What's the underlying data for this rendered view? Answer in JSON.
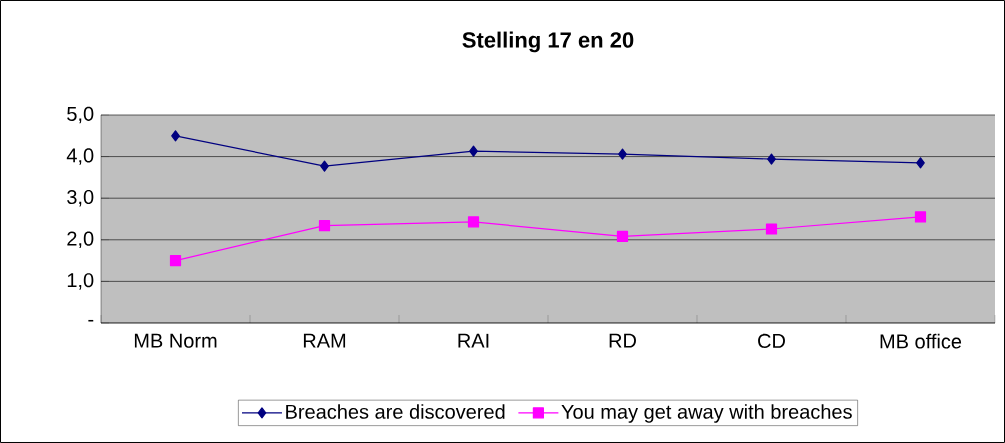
{
  "chart_data": {
    "type": "line",
    "title": "Stelling 17 en 20",
    "categories": [
      "MB Norm",
      "RAM",
      "RAI",
      "RD",
      "CD",
      "MB office"
    ],
    "series": [
      {
        "name": "Breaches are discovered",
        "color": "#000080",
        "marker": "diamond",
        "values": [
          4.5,
          3.77,
          4.13,
          4.06,
          3.94,
          3.85
        ]
      },
      {
        "name": "You may get away with breaches",
        "color": "#ff00ff",
        "marker": "square",
        "values": [
          1.5,
          2.34,
          2.43,
          2.08,
          2.26,
          2.55
        ]
      }
    ],
    "ylim": [
      0,
      5
    ],
    "yticks": [
      {
        "value": 0,
        "label": "-"
      },
      {
        "value": 1,
        "label": "1,0"
      },
      {
        "value": 2,
        "label": "2,0"
      },
      {
        "value": 3,
        "label": "3,0"
      },
      {
        "value": 4,
        "label": "4,0"
      },
      {
        "value": 5,
        "label": "5,0"
      }
    ],
    "grid": "y",
    "legend": "bottom",
    "line_style": "solid"
  }
}
